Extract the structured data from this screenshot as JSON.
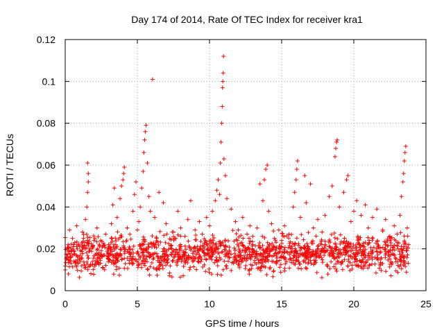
{
  "chart_data": {
    "type": "scatter",
    "title": "Day 174 of 2014, Rate Of TEC Index for receiver kra1",
    "xlabel": "GPS time / hours",
    "ylabel": "ROTI / TECUs",
    "xlim": [
      0,
      25
    ],
    "ylim": [
      0,
      0.12
    ],
    "xticks": [
      0,
      5,
      10,
      15,
      20,
      25
    ],
    "xtick_labels": [
      "0",
      "5",
      "10",
      "15",
      "20",
      "25"
    ],
    "yticks": [
      0,
      0.02,
      0.04,
      0.06,
      0.08,
      0.1,
      0.12
    ],
    "ytick_labels": [
      "0",
      "0.02",
      "0.04",
      "0.06",
      "0.08",
      "0.1",
      "0.12"
    ],
    "grid": true,
    "marker": "+",
    "series": [
      {
        "name": "ROTI",
        "color": "#ff0000",
        "points": [
          [
            0.1,
            0.016
          ],
          [
            0.2,
            0.022
          ],
          [
            0.3,
            0.029
          ],
          [
            0.4,
            0.013
          ],
          [
            0.5,
            0.025
          ],
          [
            0.6,
            0.019
          ],
          [
            0.8,
            0.031
          ],
          [
            1.0,
            0.021
          ],
          [
            1.2,
            0.028
          ],
          [
            1.4,
            0.034
          ],
          [
            1.5,
            0.04
          ],
          [
            1.55,
            0.047
          ],
          [
            1.6,
            0.052
          ],
          [
            1.6,
            0.056
          ],
          [
            1.55,
            0.061
          ],
          [
            1.7,
            0.02
          ],
          [
            2.0,
            0.024
          ],
          [
            2.2,
            0.03
          ],
          [
            2.5,
            0.019
          ],
          [
            2.8,
            0.027
          ],
          [
            3.0,
            0.022
          ],
          [
            3.2,
            0.032
          ],
          [
            3.3,
            0.041
          ],
          [
            3.4,
            0.049
          ],
          [
            3.6,
            0.035
          ],
          [
            3.8,
            0.044
          ],
          [
            3.9,
            0.05
          ],
          [
            4.0,
            0.053
          ],
          [
            4.05,
            0.056
          ],
          [
            4.1,
            0.059
          ],
          [
            4.3,
            0.03
          ],
          [
            4.5,
            0.018
          ],
          [
            4.7,
            0.038
          ],
          [
            4.8,
            0.046
          ],
          [
            4.9,
            0.052
          ],
          [
            5.0,
            0.029
          ],
          [
            5.1,
            0.033
          ],
          [
            5.2,
            0.04
          ],
          [
            5.3,
            0.049
          ],
          [
            5.4,
            0.057
          ],
          [
            5.45,
            0.066
          ],
          [
            5.5,
            0.072
          ],
          [
            5.55,
            0.076
          ],
          [
            5.6,
            0.079
          ],
          [
            5.7,
            0.061
          ],
          [
            5.8,
            0.045
          ],
          [
            5.9,
            0.038
          ],
          [
            6.05,
            0.101
          ],
          [
            6.2,
            0.035
          ],
          [
            6.5,
            0.047
          ],
          [
            6.8,
            0.042
          ],
          [
            7.0,
            0.032
          ],
          [
            7.5,
            0.028
          ],
          [
            7.8,
            0.038
          ],
          [
            8.0,
            0.03
          ],
          [
            8.3,
            0.026
          ],
          [
            8.5,
            0.034
          ],
          [
            8.7,
            0.043
          ],
          [
            9.0,
            0.029
          ],
          [
            9.3,
            0.033
          ],
          [
            9.5,
            0.027
          ],
          [
            9.8,
            0.035
          ],
          [
            10.0,
            0.031
          ],
          [
            10.2,
            0.038
          ],
          [
            10.4,
            0.043
          ],
          [
            10.5,
            0.048
          ],
          [
            10.6,
            0.053
          ],
          [
            10.7,
            0.046
          ],
          [
            10.75,
            0.061
          ],
          [
            10.8,
            0.071
          ],
          [
            10.85,
            0.08
          ],
          [
            10.88,
            0.088
          ],
          [
            10.9,
            0.097
          ],
          [
            10.92,
            0.1
          ],
          [
            10.95,
            0.104
          ],
          [
            10.97,
            0.112
          ],
          [
            11.0,
            0.063
          ],
          [
            11.1,
            0.055
          ],
          [
            11.2,
            0.044
          ],
          [
            11.5,
            0.039
          ],
          [
            11.8,
            0.033
          ],
          [
            12.0,
            0.029
          ],
          [
            12.3,
            0.035
          ],
          [
            12.6,
            0.027
          ],
          [
            12.8,
            0.031
          ],
          [
            13.0,
            0.026
          ],
          [
            13.3,
            0.03
          ],
          [
            13.5,
            0.051
          ],
          [
            13.7,
            0.043
          ],
          [
            13.8,
            0.053
          ],
          [
            13.9,
            0.058
          ],
          [
            14.0,
            0.06
          ],
          [
            14.1,
            0.038
          ],
          [
            14.3,
            0.032
          ],
          [
            14.5,
            0.025
          ],
          [
            14.8,
            0.029
          ],
          [
            15.0,
            0.024
          ],
          [
            15.2,
            0.031
          ],
          [
            15.5,
            0.027
          ],
          [
            15.8,
            0.04
          ],
          [
            15.9,
            0.047
          ],
          [
            16.0,
            0.053
          ],
          [
            16.05,
            0.058
          ],
          [
            16.1,
            0.062
          ],
          [
            16.3,
            0.035
          ],
          [
            16.6,
            0.055
          ],
          [
            16.7,
            0.042
          ],
          [
            17.0,
            0.051
          ],
          [
            17.2,
            0.03
          ],
          [
            17.5,
            0.034
          ],
          [
            17.8,
            0.028
          ],
          [
            18.0,
            0.036
          ],
          [
            18.3,
            0.045
          ],
          [
            18.5,
            0.05
          ],
          [
            18.7,
            0.064
          ],
          [
            18.75,
            0.068
          ],
          [
            18.8,
            0.071
          ],
          [
            18.85,
            0.072
          ],
          [
            19.0,
            0.04
          ],
          [
            19.3,
            0.047
          ],
          [
            19.5,
            0.053
          ],
          [
            19.6,
            0.055
          ],
          [
            19.8,
            0.033
          ],
          [
            20.0,
            0.038
          ],
          [
            20.2,
            0.043
          ],
          [
            20.5,
            0.036
          ],
          [
            20.8,
            0.041
          ],
          [
            21.0,
            0.03
          ],
          [
            21.3,
            0.035
          ],
          [
            21.6,
            0.039
          ],
          [
            22.0,
            0.029
          ],
          [
            22.2,
            0.034
          ],
          [
            22.5,
            0.026
          ],
          [
            22.8,
            0.031
          ],
          [
            23.0,
            0.027
          ],
          [
            23.2,
            0.036
          ],
          [
            23.3,
            0.045
          ],
          [
            23.4,
            0.052
          ],
          [
            23.45,
            0.056
          ],
          [
            23.5,
            0.062
          ],
          [
            23.55,
            0.066
          ],
          [
            23.6,
            0.069
          ],
          [
            23.7,
            0.03
          ],
          [
            23.8,
            0.022
          ]
        ],
        "baseline_band": {
          "x_range": [
            0,
            23.8
          ],
          "y_min": 0.005,
          "y_max": 0.03,
          "count": 1400
        }
      }
    ]
  }
}
